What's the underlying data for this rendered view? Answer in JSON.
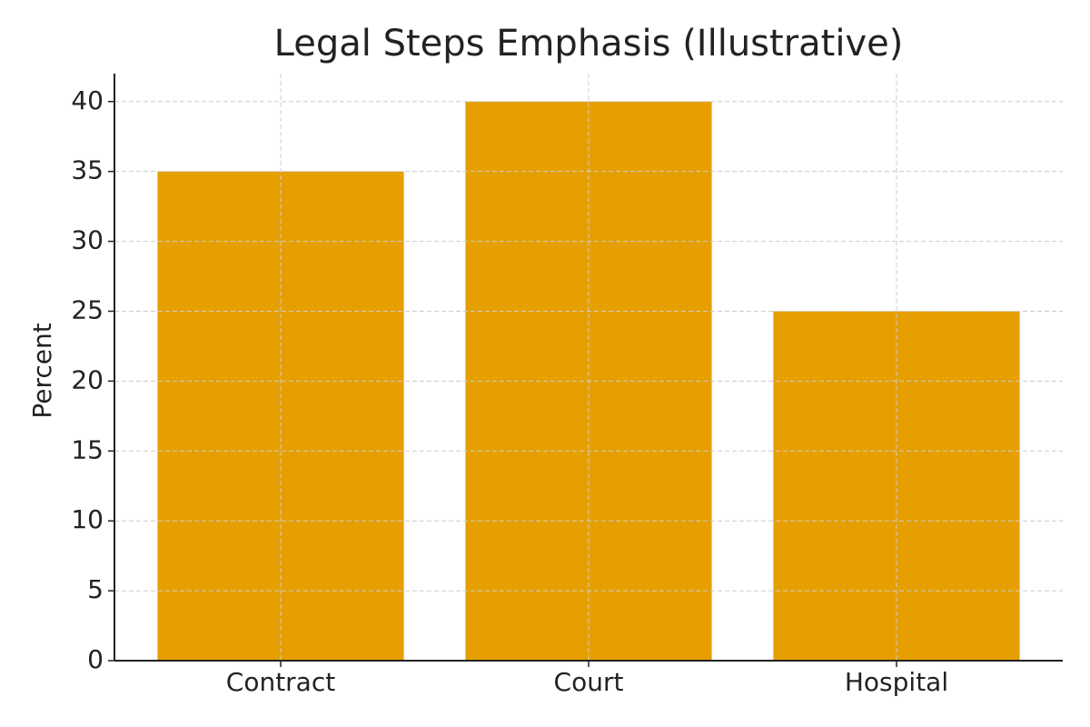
{
  "chart_data": {
    "type": "bar",
    "title": "Legal Steps Emphasis (Illustrative)",
    "y_label": "Percent",
    "categories": [
      "Contract",
      "Court",
      "Hospital"
    ],
    "values": [
      35,
      40,
      25
    ],
    "color": "#e69f00",
    "ylim": [
      0,
      42
    ],
    "yticks": [
      0,
      5,
      10,
      15,
      20,
      25,
      30,
      35,
      40
    ],
    "grid": true
  }
}
